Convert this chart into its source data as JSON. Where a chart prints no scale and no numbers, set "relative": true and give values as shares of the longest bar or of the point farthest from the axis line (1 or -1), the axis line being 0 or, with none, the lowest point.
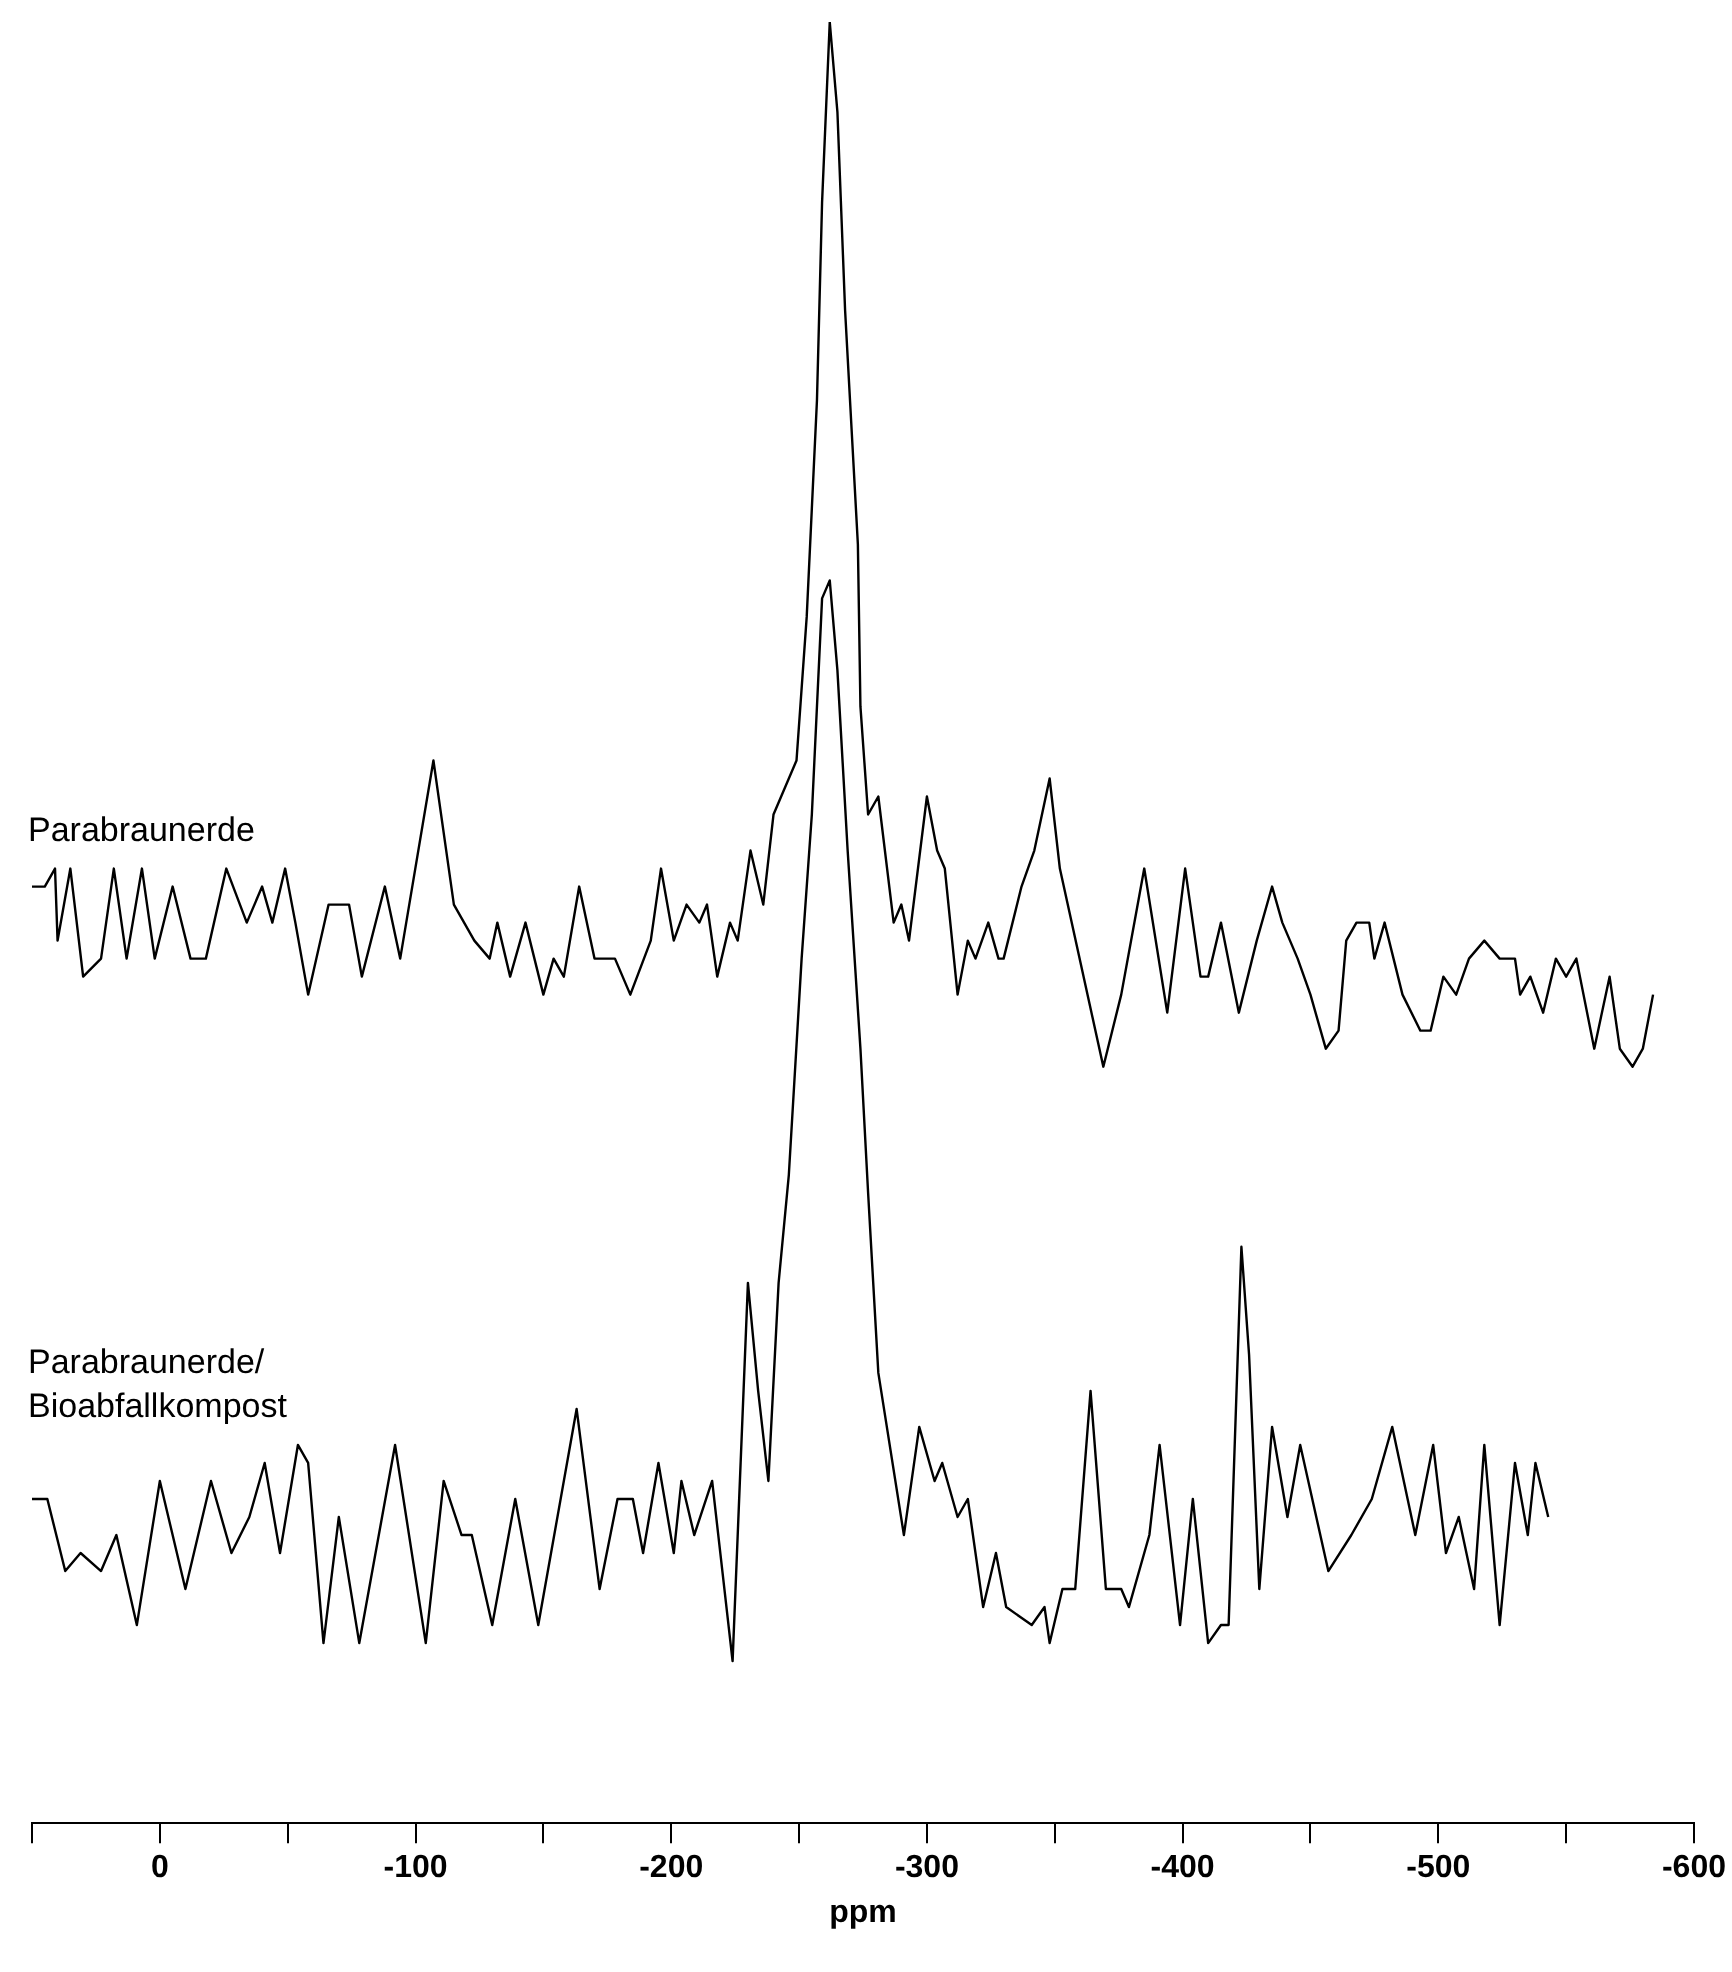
{
  "chart_data": {
    "type": "line",
    "xlabel": "ppm",
    "relative": true,
    "tick_labels": "x",
    "xlim": [
      50,
      -600
    ],
    "xticks": [
      {
        "value": 50,
        "label": null
      },
      0,
      {
        "value": -50,
        "label": null
      },
      -100,
      {
        "value": -150,
        "label": null
      },
      -200,
      {
        "value": -250,
        "label": null
      },
      -300,
      {
        "value": -350,
        "label": null
      },
      -400,
      {
        "value": -450,
        "label": null
      },
      -500,
      {
        "value": -550,
        "label": null
      },
      -600
    ],
    "series": [
      {
        "name": "Parabraunerde",
        "color": "#000000",
        "x": [
          50,
          45,
          41,
          40,
          35,
          30,
          23,
          18,
          13,
          7,
          2,
          -5,
          -12,
          -18,
          -26,
          -34,
          -40,
          -44,
          -49,
          -53,
          -58,
          -66,
          -74,
          -79,
          -88,
          -94,
          -107,
          -115,
          -123,
          -129,
          -132,
          -137,
          -143,
          -150,
          -154,
          -158,
          -164,
          -170,
          -178,
          -184,
          -192,
          -196,
          -201,
          -206,
          -211,
          -214,
          -218,
          -223,
          -226,
          -231,
          -236,
          -240,
          -243,
          -249,
          -253,
          -257,
          -259,
          -262,
          -265,
          -268,
          -273,
          -274,
          -277,
          -281,
          -287,
          -290,
          -293,
          -300,
          -304,
          -307,
          -312,
          -316,
          -319,
          -324,
          -328,
          -330,
          -337,
          -342,
          -348,
          -352,
          -369,
          -376,
          -385,
          -394,
          -401,
          -407,
          -410,
          -415,
          -422,
          -429,
          -435,
          -439,
          -445,
          -450,
          -456,
          -461,
          -464,
          -468,
          -473,
          -475,
          -479,
          -486,
          -493,
          -497,
          -502,
          -507,
          -512,
          -518,
          -524,
          -530,
          -532,
          -536,
          -541,
          -546,
          -550,
          -554,
          -561,
          -567,
          -571,
          -576,
          -580,
          -584
        ],
        "values": [
          0.52,
          0.52,
          0.53,
          0.49,
          0.53,
          0.47,
          0.48,
          0.53,
          0.48,
          0.53,
          0.48,
          0.52,
          0.48,
          0.48,
          0.53,
          0.5,
          0.52,
          0.5,
          0.53,
          0.5,
          0.46,
          0.51,
          0.51,
          0.47,
          0.52,
          0.48,
          0.59,
          0.51,
          0.49,
          0.48,
          0.5,
          0.47,
          0.5,
          0.46,
          0.48,
          0.47,
          0.52,
          0.48,
          0.48,
          0.46,
          0.49,
          0.53,
          0.49,
          0.51,
          0.5,
          0.51,
          0.47,
          0.5,
          0.49,
          0.54,
          0.51,
          0.56,
          0.57,
          0.59,
          0.67,
          0.79,
          0.9,
          1,
          0.95,
          0.84,
          0.71,
          0.62,
          0.56,
          0.57,
          0.5,
          0.51,
          0.49,
          0.57,
          0.54,
          0.53,
          0.46,
          0.49,
          0.48,
          0.5,
          0.48,
          0.48,
          0.52,
          0.54,
          0.58,
          0.53,
          0.42,
          0.46,
          0.53,
          0.45,
          0.53,
          0.47,
          0.47,
          0.5,
          0.45,
          0.49,
          0.52,
          0.5,
          0.48,
          0.46,
          0.43,
          0.44,
          0.49,
          0.5,
          0.5,
          0.48,
          0.5,
          0.46,
          0.44,
          0.44,
          0.47,
          0.46,
          0.48,
          0.49,
          0.48,
          0.48,
          0.46,
          0.47,
          0.45,
          0.48,
          0.47,
          0.48,
          0.43,
          0.47,
          0.43,
          0.42,
          0.43,
          0.46
        ]
      },
      {
        "name": "Parabraunerde/Bioabfallkompost",
        "color": "#000000",
        "x": [
          50,
          44,
          37,
          31,
          23,
          17,
          9,
          0,
          -10,
          -20,
          -28,
          -35,
          -41,
          -47,
          -54,
          -58,
          -64,
          -70,
          -78,
          -92,
          -104,
          -111,
          -118,
          -122,
          -130,
          -139,
          -148,
          -163,
          -172,
          -179,
          -185,
          -189,
          -195,
          -201,
          -204,
          -209,
          -216,
          -224,
          -230,
          -234,
          -238,
          -242,
          -246,
          -251,
          -255,
          -259,
          -262,
          -265,
          -269,
          -274,
          -277,
          -281,
          -291,
          -297,
          -303,
          -306,
          -312,
          -316,
          -322,
          -327,
          -331,
          -341,
          -346,
          -348,
          -353,
          -358,
          -364,
          -370,
          -376,
          -379,
          -387,
          -391,
          -399,
          -404,
          -410,
          -415,
          -418,
          -423,
          -426,
          -430,
          -435,
          -441,
          -446,
          -457,
          -466,
          -474,
          -482,
          -491,
          -498,
          -503,
          -508,
          -514,
          -518,
          -524,
          -530,
          -535,
          -538,
          -543
        ],
        "values": [
          0.18,
          0.18,
          0.14,
          0.15,
          0.14,
          0.16,
          0.11,
          0.19,
          0.13,
          0.19,
          0.15,
          0.17,
          0.2,
          0.15,
          0.21,
          0.2,
          0.1,
          0.17,
          0.1,
          0.21,
          0.1,
          0.19,
          0.16,
          0.16,
          0.11,
          0.18,
          0.11,
          0.23,
          0.13,
          0.18,
          0.18,
          0.15,
          0.2,
          0.15,
          0.19,
          0.16,
          0.19,
          0.09,
          0.3,
          0.24,
          0.19,
          0.3,
          0.36,
          0.48,
          0.56,
          0.68,
          0.69,
          0.64,
          0.54,
          0.43,
          0.35,
          0.25,
          0.16,
          0.22,
          0.19,
          0.2,
          0.17,
          0.18,
          0.12,
          0.15,
          0.12,
          0.11,
          0.12,
          0.1,
          0.13,
          0.13,
          0.24,
          0.13,
          0.13,
          0.12,
          0.16,
          0.21,
          0.11,
          0.18,
          0.1,
          0.11,
          0.11,
          0.32,
          0.26,
          0.13,
          0.22,
          0.17,
          0.21,
          0.14,
          0.16,
          0.18,
          0.22,
          0.16,
          0.21,
          0.15,
          0.17,
          0.13,
          0.21,
          0.11,
          0.2,
          0.16,
          0.2,
          0.17
        ]
      }
    ]
  }
}
